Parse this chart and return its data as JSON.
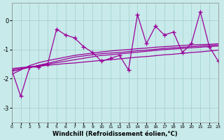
{
  "x": [
    0,
    1,
    2,
    3,
    4,
    5,
    6,
    7,
    8,
    9,
    10,
    11,
    12,
    13,
    14,
    15,
    16,
    17,
    18,
    19,
    20,
    21,
    22,
    23
  ],
  "y_main": [
    -1.7,
    -2.6,
    -1.6,
    -1.6,
    -1.5,
    -0.3,
    -0.5,
    -0.6,
    -0.9,
    -1.1,
    -1.4,
    -1.3,
    -1.2,
    -1.7,
    0.2,
    -0.8,
    -0.2,
    -0.5,
    -0.4,
    -1.1,
    -0.8,
    0.3,
    -0.9,
    -1.4
  ],
  "trend_flat": [
    -1.65,
    -1.62,
    -1.59,
    -1.57,
    -1.54,
    -1.51,
    -1.48,
    -1.46,
    -1.43,
    -1.4,
    -1.37,
    -1.35,
    -1.32,
    -1.29,
    -1.26,
    -1.24,
    -1.21,
    -1.18,
    -1.16,
    -1.13,
    -1.1,
    -1.08,
    -1.05,
    -1.02
  ],
  "trend_mid1": [
    -1.7,
    -1.65,
    -1.6,
    -1.55,
    -1.5,
    -1.45,
    -1.4,
    -1.35,
    -1.3,
    -1.25,
    -1.2,
    -1.18,
    -1.15,
    -1.12,
    -1.09,
    -1.06,
    -1.03,
    -1.0,
    -0.98,
    -0.96,
    -0.94,
    -0.92,
    -0.9,
    -0.88
  ],
  "trend_mid2": [
    -1.75,
    -1.68,
    -1.61,
    -1.54,
    -1.47,
    -1.4,
    -1.33,
    -1.26,
    -1.22,
    -1.18,
    -1.14,
    -1.12,
    -1.1,
    -1.07,
    -1.04,
    -1.02,
    -0.99,
    -0.96,
    -0.94,
    -0.92,
    -0.9,
    -0.88,
    -0.86,
    -0.84
  ],
  "trend_steep": [
    -1.85,
    -1.7,
    -1.55,
    -1.45,
    -1.38,
    -1.32,
    -1.26,
    -1.2,
    -1.16,
    -1.12,
    -1.08,
    -1.05,
    -1.02,
    -1.0,
    -0.97,
    -0.95,
    -0.92,
    -0.9,
    -0.88,
    -0.86,
    -0.84,
    -0.83,
    -0.82,
    -0.8
  ],
  "line_color": "#990099",
  "bg_color": "#c8eaea",
  "grid_color": "#a0cccc",
  "xlabel": "Windchill (Refroidissement éolien,°C)",
  "ylim": [
    -3.5,
    0.6
  ],
  "xlim": [
    0,
    23
  ],
  "yticks": [
    0,
    -1,
    -2,
    -3
  ],
  "xticks": [
    0,
    1,
    2,
    3,
    4,
    5,
    6,
    7,
    8,
    9,
    10,
    11,
    12,
    13,
    14,
    15,
    16,
    17,
    18,
    19,
    20,
    21,
    22,
    23
  ],
  "marker": "+",
  "markersize": 4,
  "linewidth": 0.9
}
